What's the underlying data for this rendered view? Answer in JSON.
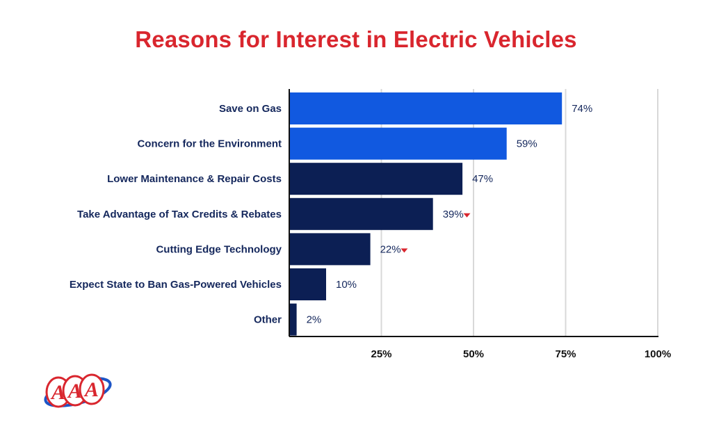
{
  "chart_data": {
    "type": "bar",
    "orientation": "horizontal",
    "title": "Reasons for Interest in Electric Vehicles",
    "categories": [
      "Save on Gas",
      "Concern for the Environment",
      "Lower Maintenance & Repair Costs",
      "Take Advantage of Tax Credits & Rebates",
      "Cutting Edge Technology",
      "Expect State to Ban Gas-Powered Vehicles",
      "Other"
    ],
    "values": [
      74,
      59,
      47,
      39,
      22,
      10,
      2
    ],
    "value_labels": [
      "74%",
      "59%",
      "47%",
      "39%",
      "22%",
      "10%",
      "2%"
    ],
    "decrease_marker": [
      false,
      false,
      false,
      true,
      true,
      false,
      false
    ],
    "highlight": [
      true,
      true,
      false,
      false,
      false,
      false,
      false
    ],
    "xlim": [
      0,
      100
    ],
    "xticks": [
      25,
      50,
      75,
      100
    ],
    "xtick_labels": [
      "25%",
      "50%",
      "75%",
      "100%"
    ],
    "grid": "vertical",
    "colors": {
      "title": "#d9262e",
      "highlight_bar": "#1159e0",
      "bar": "#0c1f54",
      "label": "#14275c",
      "gridline": "#d8d8d8",
      "axis": "#111111",
      "down_arrow": "#d9262e"
    }
  },
  "logo": {
    "text": "AAA",
    "colors": {
      "red": "#d9262e",
      "blue": "#1d55c6"
    }
  }
}
